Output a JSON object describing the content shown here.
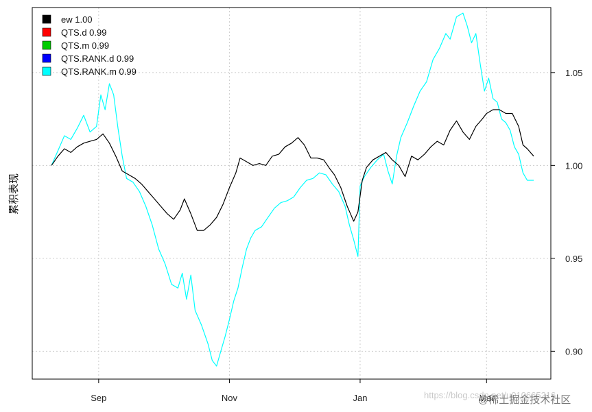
{
  "chart_data": {
    "type": "line",
    "ylabel": "累积表现",
    "xlabel": "",
    "ylim": [
      0.885,
      1.085
    ],
    "x_range": [
      "2020-08-01",
      "2021-03-31"
    ],
    "x_ticks": [
      {
        "date": "2020-09-01",
        "label": "Sep"
      },
      {
        "date": "2020-11-01",
        "label": "Nov"
      },
      {
        "date": "2021-01-01",
        "label": "Jan"
      },
      {
        "date": "2021-03-01",
        "label": "Mar"
      }
    ],
    "y_ticks": [
      {
        "value": 0.9,
        "label": "0.90"
      },
      {
        "value": 0.95,
        "label": "0.95"
      },
      {
        "value": 1.0,
        "label": "1.00"
      },
      {
        "value": 1.05,
        "label": "1.05"
      }
    ],
    "y_axis_side": "right",
    "grid": true,
    "legend_position": "top-left",
    "legend": [
      {
        "label": "ew 1.00",
        "color": "#000000"
      },
      {
        "label": "QTS.d 0.99",
        "color": "#ff0000"
      },
      {
        "label": "QTS.m 0.99",
        "color": "#00cc00"
      },
      {
        "label": "QTS.RANK.d 0.99",
        "color": "#0000ff"
      },
      {
        "label": "QTS.RANK.m 0.99",
        "color": "#00ffff"
      }
    ],
    "series": [
      {
        "name": "QTS.RANK.m 0.99",
        "color": "#00ffff",
        "points": [
          [
            "2020-08-10",
            1.0
          ],
          [
            "2020-08-13",
            1.008
          ],
          [
            "2020-08-16",
            1.016
          ],
          [
            "2020-08-19",
            1.014
          ],
          [
            "2020-08-22",
            1.02
          ],
          [
            "2020-08-25",
            1.027
          ],
          [
            "2020-08-28",
            1.018
          ],
          [
            "2020-08-31",
            1.021
          ],
          [
            "2020-09-02",
            1.038
          ],
          [
            "2020-09-04",
            1.03
          ],
          [
            "2020-09-06",
            1.044
          ],
          [
            "2020-09-08",
            1.038
          ],
          [
            "2020-09-10",
            1.02
          ],
          [
            "2020-09-12",
            1.005
          ],
          [
            "2020-09-14",
            0.993
          ],
          [
            "2020-09-17",
            0.991
          ],
          [
            "2020-09-20",
            0.986
          ],
          [
            "2020-09-23",
            0.978
          ],
          [
            "2020-09-26",
            0.968
          ],
          [
            "2020-09-29",
            0.955
          ],
          [
            "2020-10-02",
            0.947
          ],
          [
            "2020-10-05",
            0.936
          ],
          [
            "2020-10-08",
            0.934
          ],
          [
            "2020-10-10",
            0.942
          ],
          [
            "2020-10-12",
            0.928
          ],
          [
            "2020-10-14",
            0.941
          ],
          [
            "2020-10-16",
            0.922
          ],
          [
            "2020-10-19",
            0.914
          ],
          [
            "2020-10-22",
            0.904
          ],
          [
            "2020-10-24",
            0.895
          ],
          [
            "2020-10-26",
            0.892
          ],
          [
            "2020-10-28",
            0.9
          ],
          [
            "2020-10-30",
            0.908
          ],
          [
            "2020-11-01",
            0.917
          ],
          [
            "2020-11-03",
            0.927
          ],
          [
            "2020-11-05",
            0.934
          ],
          [
            "2020-11-07",
            0.945
          ],
          [
            "2020-11-09",
            0.955
          ],
          [
            "2020-11-11",
            0.961
          ],
          [
            "2020-11-13",
            0.965
          ],
          [
            "2020-11-16",
            0.967
          ],
          [
            "2020-11-19",
            0.972
          ],
          [
            "2020-11-22",
            0.977
          ],
          [
            "2020-11-25",
            0.98
          ],
          [
            "2020-11-28",
            0.981
          ],
          [
            "2020-12-01",
            0.983
          ],
          [
            "2020-12-04",
            0.988
          ],
          [
            "2020-12-07",
            0.992
          ],
          [
            "2020-12-10",
            0.993
          ],
          [
            "2020-12-13",
            0.996
          ],
          [
            "2020-12-16",
            0.995
          ],
          [
            "2020-12-19",
            0.99
          ],
          [
            "2020-12-22",
            0.986
          ],
          [
            "2020-12-25",
            0.978
          ],
          [
            "2020-12-27",
            0.968
          ],
          [
            "2020-12-29",
            0.96
          ],
          [
            "2020-12-31",
            0.951
          ],
          [
            "2021-01-01",
            0.989
          ],
          [
            "2021-01-03",
            0.994
          ],
          [
            "2021-01-06",
            0.999
          ],
          [
            "2021-01-09",
            1.003
          ],
          [
            "2021-01-12",
            1.006
          ],
          [
            "2021-01-14",
            0.997
          ],
          [
            "2021-01-16",
            0.99
          ],
          [
            "2021-01-18",
            1.005
          ],
          [
            "2021-01-20",
            1.015
          ],
          [
            "2021-01-23",
            1.023
          ],
          [
            "2021-01-26",
            1.032
          ],
          [
            "2021-01-29",
            1.04
          ],
          [
            "2021-02-01",
            1.045
          ],
          [
            "2021-02-04",
            1.057
          ],
          [
            "2021-02-07",
            1.063
          ],
          [
            "2021-02-10",
            1.071
          ],
          [
            "2021-02-12",
            1.068
          ],
          [
            "2021-02-15",
            1.08
          ],
          [
            "2021-02-18",
            1.082
          ],
          [
            "2021-02-20",
            1.075
          ],
          [
            "2021-02-22",
            1.066
          ],
          [
            "2021-02-24",
            1.071
          ],
          [
            "2021-02-26",
            1.055
          ],
          [
            "2021-02-28",
            1.04
          ],
          [
            "2021-03-02",
            1.047
          ],
          [
            "2021-03-04",
            1.036
          ],
          [
            "2021-03-06",
            1.034
          ],
          [
            "2021-03-08",
            1.025
          ],
          [
            "2021-03-10",
            1.023
          ],
          [
            "2021-03-12",
            1.019
          ],
          [
            "2021-03-14",
            1.01
          ],
          [
            "2021-03-16",
            1.006
          ],
          [
            "2021-03-18",
            0.996
          ],
          [
            "2021-03-20",
            0.992
          ],
          [
            "2021-03-23",
            0.992
          ]
        ]
      },
      {
        "name": "ew 1.00",
        "color": "#000000",
        "points": [
          [
            "2020-08-10",
            1.0
          ],
          [
            "2020-08-13",
            1.005
          ],
          [
            "2020-08-16",
            1.009
          ],
          [
            "2020-08-19",
            1.007
          ],
          [
            "2020-08-22",
            1.01
          ],
          [
            "2020-08-25",
            1.012
          ],
          [
            "2020-08-28",
            1.013
          ],
          [
            "2020-08-31",
            1.014
          ],
          [
            "2020-09-03",
            1.017
          ],
          [
            "2020-09-06",
            1.012
          ],
          [
            "2020-09-09",
            1.005
          ],
          [
            "2020-09-12",
            0.997
          ],
          [
            "2020-09-15",
            0.995
          ],
          [
            "2020-09-18",
            0.993
          ],
          [
            "2020-09-21",
            0.99
          ],
          [
            "2020-09-24",
            0.986
          ],
          [
            "2020-09-27",
            0.982
          ],
          [
            "2020-09-30",
            0.978
          ],
          [
            "2020-10-03",
            0.974
          ],
          [
            "2020-10-06",
            0.971
          ],
          [
            "2020-10-09",
            0.976
          ],
          [
            "2020-10-11",
            0.982
          ],
          [
            "2020-10-14",
            0.974
          ],
          [
            "2020-10-17",
            0.965
          ],
          [
            "2020-10-20",
            0.965
          ],
          [
            "2020-10-23",
            0.968
          ],
          [
            "2020-10-26",
            0.972
          ],
          [
            "2020-10-29",
            0.979
          ],
          [
            "2020-11-01",
            0.988
          ],
          [
            "2020-11-04",
            0.996
          ],
          [
            "2020-11-06",
            1.004
          ],
          [
            "2020-11-09",
            1.002
          ],
          [
            "2020-11-12",
            1.0
          ],
          [
            "2020-11-15",
            1.001
          ],
          [
            "2020-11-18",
            1.0
          ],
          [
            "2020-11-21",
            1.005
          ],
          [
            "2020-11-24",
            1.006
          ],
          [
            "2020-11-27",
            1.01
          ],
          [
            "2020-11-30",
            1.012
          ],
          [
            "2020-12-03",
            1.015
          ],
          [
            "2020-12-06",
            1.011
          ],
          [
            "2020-12-09",
            1.004
          ],
          [
            "2020-12-12",
            1.004
          ],
          [
            "2020-12-15",
            1.003
          ],
          [
            "2020-12-18",
            0.998
          ],
          [
            "2020-12-20",
            0.995
          ],
          [
            "2020-12-23",
            0.988
          ],
          [
            "2020-12-26",
            0.978
          ],
          [
            "2020-12-29",
            0.97
          ],
          [
            "2020-12-31",
            0.975
          ],
          [
            "2021-01-02",
            0.992
          ],
          [
            "2021-01-04",
            0.999
          ],
          [
            "2021-01-07",
            1.003
          ],
          [
            "2021-01-10",
            1.005
          ],
          [
            "2021-01-13",
            1.007
          ],
          [
            "2021-01-16",
            1.003
          ],
          [
            "2021-01-19",
            1.0
          ],
          [
            "2021-01-22",
            0.994
          ],
          [
            "2021-01-25",
            1.005
          ],
          [
            "2021-01-28",
            1.003
          ],
          [
            "2021-01-31",
            1.006
          ],
          [
            "2021-02-03",
            1.01
          ],
          [
            "2021-02-06",
            1.013
          ],
          [
            "2021-02-09",
            1.011
          ],
          [
            "2021-02-12",
            1.019
          ],
          [
            "2021-02-15",
            1.024
          ],
          [
            "2021-02-18",
            1.018
          ],
          [
            "2021-02-21",
            1.014
          ],
          [
            "2021-02-24",
            1.021
          ],
          [
            "2021-02-27",
            1.025
          ],
          [
            "2021-03-01",
            1.028
          ],
          [
            "2021-03-04",
            1.03
          ],
          [
            "2021-03-07",
            1.03
          ],
          [
            "2021-03-10",
            1.028
          ],
          [
            "2021-03-13",
            1.028
          ],
          [
            "2021-03-16",
            1.021
          ],
          [
            "2021-03-18",
            1.011
          ],
          [
            "2021-03-20",
            1.009
          ],
          [
            "2021-03-23",
            1.005
          ]
        ]
      }
    ]
  },
  "watermarks": {
    "url_text": "https://blog.csdn.net/u010665216",
    "site_text": "@稀土掘金技术社区"
  }
}
